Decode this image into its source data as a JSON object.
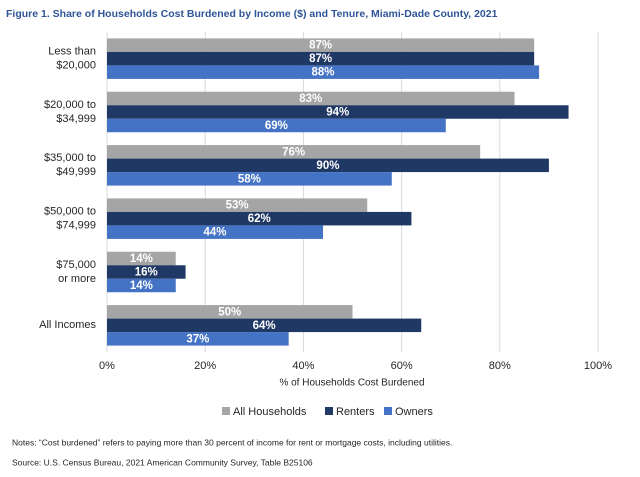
{
  "chart_data": {
    "type": "hbar",
    "title": "Figure 1. Share of Households Cost Burdened by Income ($) and Tenure, Miami-Dade County, 2021",
    "categories": [
      [
        "Less than",
        "$20,000"
      ],
      [
        "$20,000 to",
        "$34,999"
      ],
      [
        "$35,000 to",
        "$49,999"
      ],
      [
        "$50,000 to",
        "$74,999"
      ],
      [
        "$75,000",
        "or more"
      ],
      [
        "All Incomes"
      ]
    ],
    "series": [
      {
        "name": "All Households",
        "color": "#a5a5a5",
        "values": [
          87,
          83,
          76,
          53,
          14,
          50
        ],
        "value_labels": [
          "87%",
          "83%",
          "76%",
          "53%",
          "14%",
          "50%"
        ]
      },
      {
        "name": "Renters",
        "color": "#203864",
        "values": [
          87,
          94,
          90,
          62,
          16,
          64
        ],
        "value_labels": [
          "87%",
          "94%",
          "90%",
          "62%",
          "16%",
          "64%"
        ]
      },
      {
        "name": "Owners",
        "color": "#4472c4",
        "values": [
          88,
          69,
          58,
          44,
          14,
          37
        ],
        "value_labels": [
          "88%",
          "69%",
          "58%",
          "44%",
          "14%",
          "37%"
        ]
      }
    ],
    "xlim": [
      0,
      100
    ],
    "xticks": [
      {
        "value": 0,
        "label": "0%"
      },
      {
        "value": 20,
        "label": "20%"
      },
      {
        "value": 40,
        "label": "40%"
      },
      {
        "value": 60,
        "label": "60%"
      },
      {
        "value": 80,
        "label": "80%"
      },
      {
        "value": 100,
        "label": "100%"
      }
    ],
    "xlabel": "% of Households Cost Burdened",
    "grid": true,
    "legend": "bottom",
    "notes": "Notes: “Cost burdened” refers to paying more than 30 percent of income for rent or mortgage costs, including utilities.",
    "source": "Source: U.S. Census Bureau, 2021 American Community Survey, Table B25106"
  }
}
